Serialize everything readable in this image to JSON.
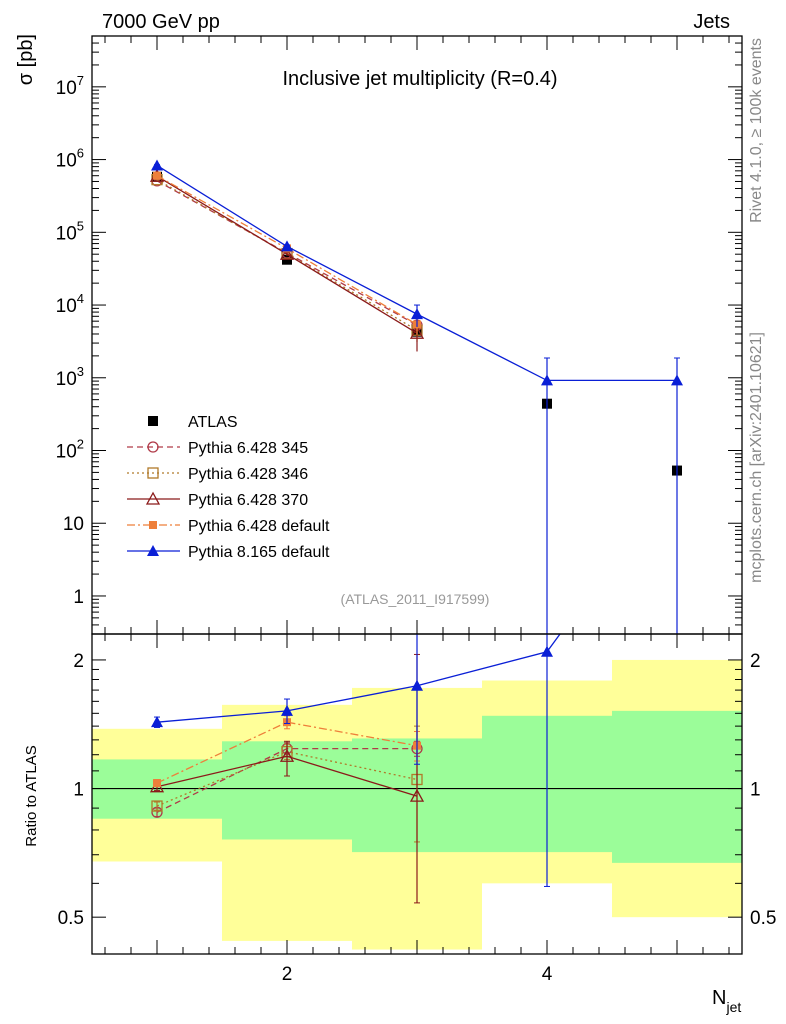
{
  "header": {
    "left": "7000 GeV pp",
    "right": "Jets"
  },
  "side_labels": {
    "rivet": "Rivet 4.1.0, ≥ 100k events",
    "mcplots": "mcplots.cern.ch [arXiv:2401.10621]"
  },
  "chart_data": [
    {
      "type": "line",
      "panel": "main",
      "title": "Inclusive jet multiplicity (R=0.4)",
      "ylabel": "σ [pb]",
      "yscale": "log",
      "ylim": [
        0.3,
        50000000
      ],
      "xlim": [
        0.5,
        5.5
      ],
      "analysis_tag": "(ATLAS_2011_I917599)",
      "yticks": [
        {
          "value": 1,
          "label": "1"
        },
        {
          "value": 10,
          "label": "10"
        },
        {
          "value": 100,
          "label": "10",
          "exp": "2"
        },
        {
          "value": 1000,
          "label": "10",
          "exp": "3"
        },
        {
          "value": 10000,
          "label": "10",
          "exp": "4"
        },
        {
          "value": 100000,
          "label": "10",
          "exp": "5"
        },
        {
          "value": 1000000,
          "label": "10",
          "exp": "6"
        },
        {
          "value": 10000000,
          "label": "10",
          "exp": "7"
        }
      ],
      "series": [
        {
          "name": "ATLAS",
          "color": "#000000",
          "marker": "square-filled",
          "line": "none",
          "x": [
            1,
            2,
            3,
            4,
            5
          ],
          "y": [
            580000,
            42000,
            4300,
            440,
            53
          ],
          "err_up": [
            0,
            0,
            0,
            0,
            0
          ],
          "err_dn": [
            0,
            0,
            0,
            0,
            0
          ]
        },
        {
          "name": "Pythia 6.428 345",
          "color": "#b03a48",
          "marker": "circle-open",
          "line": "dashed",
          "x": [
            1,
            2,
            3
          ],
          "y": [
            510000,
            52000,
            5300
          ],
          "err_up": [
            15000,
            2500,
            1500
          ],
          "err_dn": [
            15000,
            2500,
            1500
          ]
        },
        {
          "name": "Pythia 6.428 346",
          "color": "#b07a2a",
          "marker": "square-open",
          "line": "dotted",
          "x": [
            1,
            2,
            3
          ],
          "y": [
            530000,
            51000,
            4500
          ],
          "err_up": [
            15000,
            2500,
            1400
          ],
          "err_dn": [
            15000,
            2500,
            1400
          ]
        },
        {
          "name": "Pythia 6.428 370",
          "color": "#8b1a1a",
          "marker": "triangle-open",
          "line": "solid",
          "x": [
            1,
            2,
            3
          ],
          "y": [
            590000,
            50000,
            4100
          ],
          "err_up": [
            15000,
            2500,
            1800
          ],
          "err_dn": [
            15000,
            2500,
            1800
          ]
        },
        {
          "name": "Pythia 6.428 default",
          "color": "#ee7f3a",
          "marker": "square-filled-small",
          "line": "dashdot",
          "x": [
            1,
            2,
            3
          ],
          "y": [
            600000,
            60000,
            5400
          ],
          "err_up": [
            15000,
            2500,
            1500
          ],
          "err_dn": [
            15000,
            2500,
            1500
          ]
        },
        {
          "name": "Pythia 8.165 default",
          "color": "#0a1fd6",
          "marker": "triangle-filled",
          "line": "solid",
          "x": [
            1,
            2,
            3,
            4,
            5
          ],
          "y": [
            830000,
            64000,
            7500,
            920,
            920
          ],
          "err_up": [
            20000,
            3000,
            2500,
            950,
            950
          ],
          "err_dn": [
            20000,
            3000,
            2500,
            920,
            920
          ]
        }
      ]
    },
    {
      "type": "line",
      "panel": "ratio",
      "ylabel": "Ratio to ATLAS",
      "xlabel": "N",
      "xlabel_sub": "jet",
      "yscale": "log",
      "ylim": [
        0.41,
        2.3
      ],
      "xlim": [
        0.5,
        5.5
      ],
      "xticks": [
        2,
        4
      ],
      "yticks": [
        {
          "value": 0.5,
          "label": "0.5"
        },
        {
          "value": 1,
          "label": "1"
        },
        {
          "value": 2,
          "label": "2"
        }
      ],
      "bands": {
        "edges": [
          0.5,
          1.5,
          2.5,
          3.5,
          4.5,
          5.5
        ],
        "green_low": [
          0.85,
          0.76,
          0.71,
          0.71,
          0.67
        ],
        "green_high": [
          1.17,
          1.29,
          1.31,
          1.48,
          1.52
        ],
        "yellow_low": [
          0.675,
          0.44,
          0.42,
          0.6,
          0.5
        ],
        "yellow_high": [
          1.38,
          1.57,
          1.72,
          1.79,
          2.0
        ],
        "green_color": "#9bfd99",
        "yellow_color": "#ffff99"
      },
      "series": [
        {
          "name": "Pythia 6.428 345",
          "x": [
            1,
            2,
            3
          ],
          "y": [
            0.88,
            1.24,
            1.24
          ],
          "err_up": [
            0.02,
            0.04,
            0.05
          ],
          "err_dn": [
            0.02,
            0.04,
            0.05
          ]
        },
        {
          "name": "Pythia 6.428 346",
          "x": [
            1,
            2,
            3
          ],
          "y": [
            0.91,
            1.22,
            1.05
          ],
          "err_up": [
            0.02,
            0.05,
            0.35
          ],
          "err_dn": [
            0.02,
            0.05,
            0.3
          ]
        },
        {
          "name": "Pythia 6.428 370",
          "x": [
            1,
            2,
            3
          ],
          "y": [
            1.01,
            1.19,
            0.96
          ],
          "err_up": [
            0.02,
            0.1,
            1.1
          ],
          "err_dn": [
            0.02,
            0.12,
            0.42
          ]
        },
        {
          "name": "Pythia 6.428 default",
          "x": [
            1,
            2,
            3
          ],
          "y": [
            1.03,
            1.43,
            1.26
          ],
          "err_up": [
            0.02,
            0.05,
            0.1
          ],
          "err_dn": [
            0.02,
            0.05,
            0.1
          ]
        },
        {
          "name": "Pythia 8.165 default",
          "x": [
            1,
            2,
            3,
            4
          ],
          "y": [
            1.43,
            1.52,
            1.74,
            2.09
          ],
          "err_up": [
            0.04,
            0.1,
            0.7,
            0.3
          ],
          "err_dn": [
            0.04,
            0.1,
            0.6,
            1.5
          ]
        }
      ]
    }
  ]
}
